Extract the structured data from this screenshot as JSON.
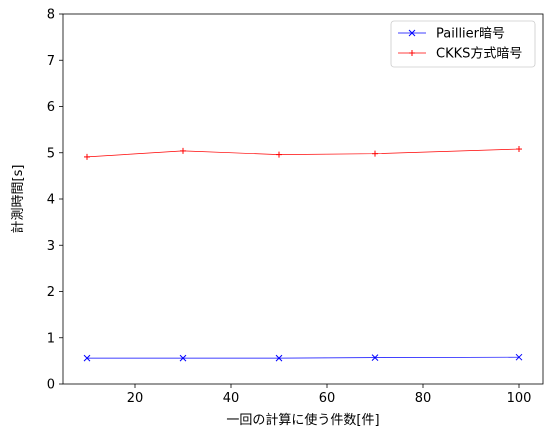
{
  "chart_data": {
    "type": "line",
    "xlabel": "一回の計算に使う件数[件]",
    "ylabel": "計測時間[s]",
    "x": [
      10,
      30,
      50,
      70,
      100
    ],
    "xlim": [
      5,
      105
    ],
    "ylim": [
      0,
      8
    ],
    "xticks": [
      20,
      40,
      60,
      80,
      100
    ],
    "yticks": [
      0,
      1,
      2,
      3,
      4,
      5,
      6,
      7,
      8
    ],
    "xtick_labels": [
      "20",
      "40",
      "60",
      "80",
      "100"
    ],
    "ytick_labels": [
      "0",
      "1",
      "2",
      "3",
      "4",
      "5",
      "6",
      "7",
      "8"
    ],
    "legend_position": "top-right",
    "grid": false,
    "series": [
      {
        "name": "Paillier暗号",
        "values": [
          0.56,
          0.56,
          0.56,
          0.57,
          0.58
        ],
        "color": "#0000ff",
        "marker": "x"
      },
      {
        "name": "CKKS方式暗号",
        "values": [
          4.91,
          5.04,
          4.96,
          4.98,
          5.08
        ],
        "color": "#ff0000",
        "marker": "+"
      }
    ]
  }
}
